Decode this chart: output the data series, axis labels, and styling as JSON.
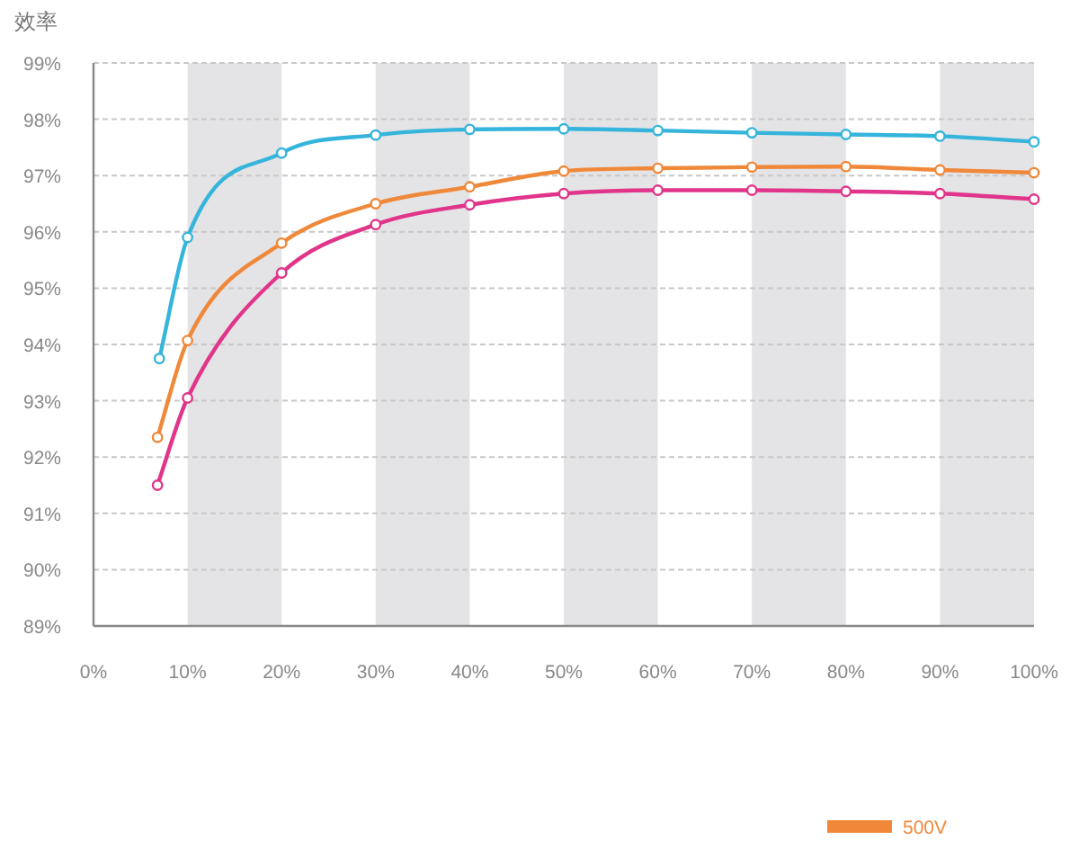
{
  "chart_data": {
    "type": "line",
    "ylabel": "效率",
    "xlim": [
      0,
      100
    ],
    "ylim": [
      89,
      99
    ],
    "xticks": [
      {
        "value": 0,
        "label": "0%"
      },
      {
        "value": 10,
        "label": "10%"
      },
      {
        "value": 20,
        "label": "20%"
      },
      {
        "value": 30,
        "label": "30%"
      },
      {
        "value": 40,
        "label": "40%"
      },
      {
        "value": 50,
        "label": "50%"
      },
      {
        "value": 60,
        "label": "60%"
      },
      {
        "value": 70,
        "label": "70%"
      },
      {
        "value": 80,
        "label": "80%"
      },
      {
        "value": 90,
        "label": "90%"
      },
      {
        "value": 100,
        "label": "100%"
      }
    ],
    "yticks": [
      {
        "value": 89,
        "label": "89%"
      },
      {
        "value": 90,
        "label": "90%"
      },
      {
        "value": 91,
        "label": "91%"
      },
      {
        "value": 92,
        "label": "92%"
      },
      {
        "value": 93,
        "label": "93%"
      },
      {
        "value": 94,
        "label": "94%"
      },
      {
        "value": 95,
        "label": "95%"
      },
      {
        "value": 96,
        "label": "96%"
      },
      {
        "value": 97,
        "label": "97%"
      },
      {
        "value": 98,
        "label": "98%"
      },
      {
        "value": 99,
        "label": "99%"
      }
    ],
    "grid": "y",
    "marker": "circle",
    "line_style": "solid",
    "legend": "bottom right",
    "bands": [
      {
        "axis": "x",
        "from": 10,
        "to": 20,
        "color": "#e4e4e6"
      },
      {
        "axis": "x",
        "from": 30,
        "to": 40,
        "color": "#e4e4e6"
      },
      {
        "axis": "x",
        "from": 50,
        "to": 60,
        "color": "#e4e4e6"
      },
      {
        "axis": "x",
        "from": 70,
        "to": 80,
        "color": "#e4e4e6"
      },
      {
        "axis": "x",
        "from": 90,
        "to": 100,
        "color": "#e4e4e6"
      }
    ],
    "series": [
      {
        "color": "#e0358a",
        "x": [
          6.8,
          10,
          20,
          30,
          40,
          50,
          60,
          70,
          80,
          90,
          100
        ],
        "values": [
          91.5,
          93.05,
          95.27,
          96.13,
          96.48,
          96.68,
          96.74,
          96.74,
          96.72,
          96.68,
          96.58
        ]
      },
      {
        "color": "#35b4dc",
        "x": [
          7,
          10,
          20,
          30,
          40,
          50,
          60,
          70,
          80,
          90,
          100
        ],
        "values": [
          93.75,
          95.9,
          97.4,
          97.72,
          97.82,
          97.83,
          97.8,
          97.76,
          97.73,
          97.7,
          97.6
        ]
      },
      {
        "name": "500V",
        "color": "#f0883a",
        "x": [
          6.8,
          10,
          20,
          30,
          40,
          50,
          60,
          70,
          80,
          90,
          100
        ],
        "values": [
          92.35,
          94.07,
          95.8,
          96.5,
          96.8,
          97.08,
          97.13,
          97.15,
          97.16,
          97.1,
          97.05
        ]
      }
    ]
  }
}
